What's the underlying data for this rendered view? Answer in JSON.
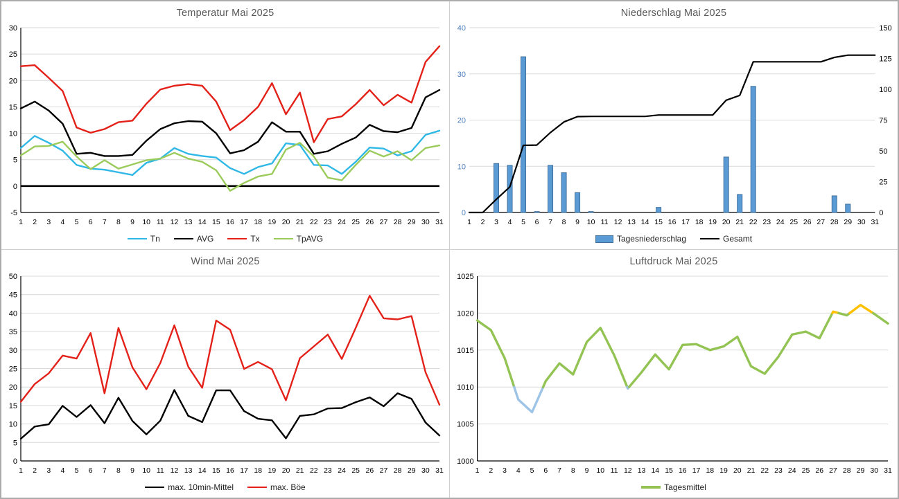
{
  "page": {
    "background": "#ffffff",
    "grid_divider_color": "#d0d0d0",
    "outer_border_color": "#ababab",
    "title_color": "#595959",
    "gridline_color": "#d9d9d9"
  },
  "days": [
    "1",
    "2",
    "3",
    "4",
    "5",
    "6",
    "7",
    "8",
    "9",
    "10",
    "11",
    "12",
    "13",
    "14",
    "15",
    "16",
    "17",
    "18",
    "19",
    "20",
    "21",
    "22",
    "23",
    "24",
    "25",
    "26",
    "27",
    "28",
    "29",
    "30",
    "31"
  ],
  "chart_data": [
    {
      "type": "line",
      "title": "Temperatur Mai 2025",
      "xlabel": "",
      "ylabel": "",
      "ylim": [
        -5,
        30
      ],
      "ystep": 5,
      "zero_line": true,
      "left_axis_line": true,
      "legend_position": "bottom",
      "grid": true,
      "y_label_color": "#000000",
      "series": [
        {
          "name": "Tn",
          "type": "line",
          "color": "#2fb8e6",
          "width": 2.4,
          "values": [
            7.2,
            9.5,
            8.2,
            6.7,
            4.0,
            3.3,
            3.1,
            2.6,
            2.1,
            4.4,
            5.2,
            7.2,
            6.1,
            5.7,
            5.4,
            3.4,
            2.3,
            3.6,
            4.3,
            8.1,
            7.8,
            4.0,
            3.9,
            2.3,
            4.6,
            7.3,
            7.1,
            5.8,
            6.6,
            9.7,
            10.5
          ]
        },
        {
          "name": "AVG",
          "type": "line",
          "color": "#000000",
          "width": 2.4,
          "values": [
            14.7,
            16.0,
            14.3,
            11.8,
            6.1,
            6.3,
            5.7,
            5.7,
            5.9,
            8.6,
            10.8,
            11.9,
            12.3,
            12.2,
            10.0,
            6.2,
            6.8,
            8.4,
            12.1,
            10.3,
            10.3,
            6.1,
            6.6,
            8.0,
            9.2,
            11.6,
            10.4,
            10.2,
            11.0,
            16.8,
            18.2
          ]
        },
        {
          "name": "Tx",
          "type": "line",
          "color": "#e32119",
          "width": 2.4,
          "values": [
            22.7,
            22.9,
            20.5,
            18.0,
            11.1,
            10.1,
            10.8,
            12.1,
            12.4,
            15.6,
            18.3,
            19.0,
            19.3,
            19.0,
            16.0,
            10.6,
            12.5,
            15.0,
            19.5,
            13.6,
            17.7,
            8.3,
            12.7,
            13.2,
            15.5,
            18.2,
            15.3,
            17.3,
            15.8,
            23.5,
            26.5
          ]
        },
        {
          "name": "TpAVG",
          "type": "line",
          "color": "#9bcb5b",
          "width": 2.4,
          "values": [
            5.8,
            7.5,
            7.6,
            8.4,
            5.6,
            3.2,
            4.9,
            3.3,
            4.1,
            4.9,
            5.2,
            6.3,
            5.2,
            4.6,
            3.0,
            -0.9,
            0.6,
            1.8,
            2.3,
            6.9,
            8.2,
            5.6,
            1.6,
            1.1,
            4.0,
            6.7,
            5.6,
            6.6,
            4.9,
            7.2,
            7.7
          ]
        }
      ]
    },
    {
      "type": "bar-line",
      "title": "Niederschlag Mai 2025",
      "xlabel": "",
      "ylabel": "",
      "ylim": [
        0,
        40
      ],
      "ystep": 10,
      "ylim_right": [
        0,
        150
      ],
      "ystep_right": 25,
      "left_axis_line": false,
      "legend_position": "bottom",
      "grid": true,
      "y_label_color": "#4f81bd",
      "y_label_color_right": "#000000",
      "series": [
        {
          "name": "Tagesniederschlag",
          "type": "bar",
          "color": "#5b9bd5",
          "border": "#41719c",
          "values": [
            0,
            0,
            10.6,
            10.2,
            33.7,
            0.2,
            10.2,
            8.6,
            4.3,
            0.2,
            0,
            0,
            0,
            0,
            1.1,
            0,
            0,
            0,
            0,
            12.0,
            3.9,
            27.3,
            0,
            0,
            0,
            0,
            0,
            3.6,
            1.8,
            0,
            0
          ]
        },
        {
          "name": "Gesamt",
          "type": "line",
          "axis": "right",
          "color": "#000000",
          "width": 2.2,
          "values": [
            0,
            0,
            10.6,
            20.8,
            54.5,
            54.7,
            64.9,
            73.5,
            77.8,
            78.0,
            78.0,
            78.0,
            78.0,
            78.0,
            79.1,
            79.1,
            79.1,
            79.1,
            79.1,
            91.1,
            95.0,
            122.3,
            122.3,
            122.3,
            122.3,
            122.3,
            122.3,
            125.9,
            127.7,
            127.7,
            127.7
          ]
        }
      ]
    },
    {
      "type": "line",
      "title": "Wind Mai 2025",
      "xlabel": "",
      "ylabel": "",
      "ylim": [
        0,
        50
      ],
      "ystep": 5,
      "left_axis_line": true,
      "legend_position": "bottom",
      "grid": true,
      "y_label_color": "#000000",
      "series": [
        {
          "name": "max. 10min-Mittel",
          "type": "line",
          "color": "#000000",
          "width": 2.4,
          "values": [
            6.0,
            9.3,
            9.9,
            14.9,
            11.9,
            15.1,
            10.2,
            17.1,
            10.8,
            7.2,
            10.9,
            19.2,
            12.2,
            10.5,
            19.1,
            19.1,
            13.5,
            11.4,
            11.0,
            6.1,
            12.2,
            12.6,
            14.2,
            14.3,
            15.9,
            17.2,
            14.8,
            18.3,
            16.8,
            10.4,
            6.9
          ]
        },
        {
          "name": "max. Böe",
          "type": "line",
          "color": "#e32119",
          "width": 2.4,
          "values": [
            16.0,
            20.8,
            23.7,
            28.5,
            27.7,
            34.6,
            18.3,
            36.0,
            25.3,
            19.4,
            26.5,
            36.7,
            25.5,
            19.8,
            38.0,
            35.5,
            24.9,
            26.8,
            24.8,
            16.4,
            27.8,
            31.0,
            34.2,
            27.6,
            36.0,
            44.7,
            38.6,
            38.3,
            39.2,
            24.0,
            15.2
          ]
        }
      ]
    },
    {
      "type": "line",
      "title": "Luftdruck Mai 2025",
      "xlabel": "",
      "ylabel": "",
      "ylim": [
        1000,
        1025
      ],
      "ystep": 5,
      "left_axis_line": true,
      "legend_position": "bottom",
      "grid": true,
      "y_label_color": "#000000",
      "series": [
        {
          "name": "Tagesmittel",
          "type": "line",
          "color": "#93c353",
          "width": 3.4,
          "color_rules": {
            "default": "#93c353",
            "below": {
              "threshold": 1010,
              "color": "#9dc3e6"
            },
            "above": {
              "threshold": 1020,
              "color": "#ffc000"
            }
          },
          "values": [
            1019.0,
            1017.7,
            1013.9,
            1008.3,
            1006.6,
            1010.8,
            1013.2,
            1011.7,
            1016.1,
            1018.0,
            1014.3,
            1009.8,
            1012.0,
            1014.4,
            1012.4,
            1015.7,
            1015.8,
            1015.0,
            1015.5,
            1016.8,
            1012.8,
            1011.8,
            1014.1,
            1017.1,
            1017.5,
            1016.6,
            1020.2,
            1019.7,
            1021.1,
            1019.9,
            1018.6
          ]
        }
      ]
    }
  ]
}
